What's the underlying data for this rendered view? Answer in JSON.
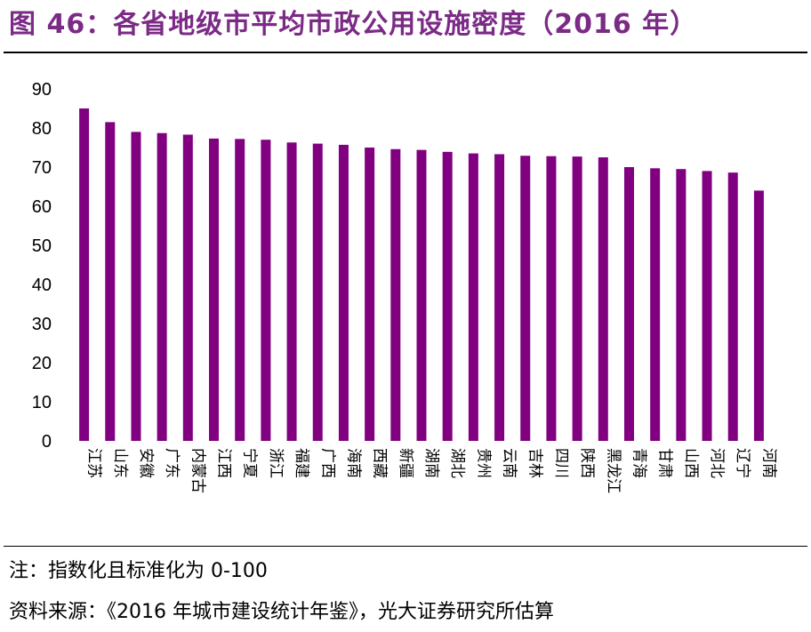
{
  "title": "图 46：各省地级市平均市政公用设施密度（2016 年）",
  "note": "注：指数化且标准化为 0-100",
  "source": "资料来源：《2016 年城市建设统计年鉴》，光大证券研究所估算",
  "chart_data": {
    "type": "bar",
    "color": "#800080",
    "categories": [
      "江苏",
      "山东",
      "安徽",
      "广东",
      "内蒙古",
      "江西",
      "宁夏",
      "浙江",
      "福建",
      "广西",
      "海南",
      "西藏",
      "新疆",
      "湖南",
      "湖北",
      "贵州",
      "云南",
      "吉林",
      "四川",
      "陕西",
      "黑龙江",
      "青海",
      "甘肃",
      "山西",
      "河北",
      "辽宁",
      "河南"
    ],
    "values": [
      85,
      81.5,
      79,
      78.7,
      78.3,
      77.3,
      77.2,
      77,
      76.3,
      76,
      75.7,
      75,
      74.6,
      74.4,
      73.9,
      73.5,
      73.3,
      72.9,
      72.8,
      72.7,
      72.5,
      70,
      69.7,
      69.5,
      69,
      68.6,
      64
    ],
    "ylim": [
      0,
      90
    ],
    "yticks": [
      0,
      10,
      20,
      30,
      40,
      50,
      60,
      70,
      80,
      90
    ],
    "title": "",
    "xlabel": "",
    "ylabel": "",
    "grid": false,
    "legend": "none"
  }
}
